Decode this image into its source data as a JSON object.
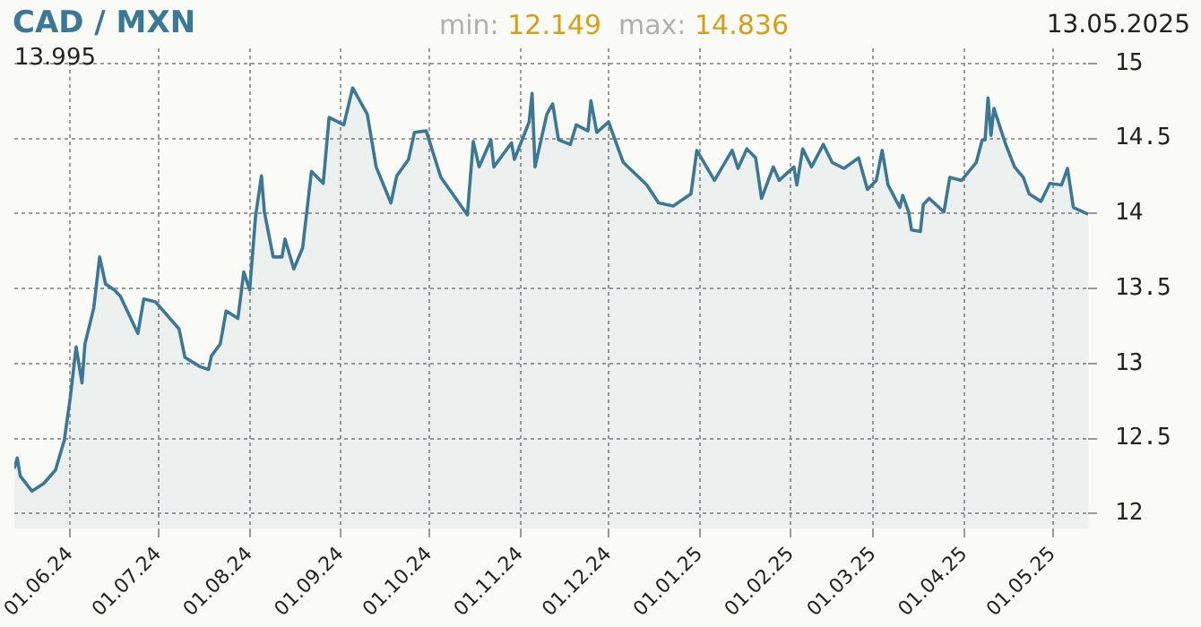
{
  "chart_data": {
    "type": "area",
    "title": "CAD / MXN",
    "annotations": [
      "13.995",
      "min: 12.149",
      "max: 14.836",
      "13.05.2025"
    ],
    "x": [
      "2024-05-13",
      "2024-05-14",
      "2024-05-15",
      "2024-05-19",
      "2024-05-23",
      "2024-05-27",
      "2024-05-30",
      "2024-06-01",
      "2024-06-03",
      "2024-06-05",
      "2024-06-06",
      "2024-06-09",
      "2024-06-11",
      "2024-06-13",
      "2024-06-16",
      "2024-06-18",
      "2024-06-24",
      "2024-06-26",
      "2024-06-30",
      "2024-07-08",
      "2024-07-10",
      "2024-07-15",
      "2024-07-18",
      "2024-07-19",
      "2024-07-22",
      "2024-07-24",
      "2024-07-28",
      "2024-07-30",
      "2024-08-01",
      "2024-08-03",
      "2024-08-05",
      "2024-08-06",
      "2024-08-09",
      "2024-08-12",
      "2024-08-13",
      "2024-08-16",
      "2024-08-19",
      "2024-08-22",
      "2024-08-26",
      "2024-08-28",
      "2024-09-02",
      "2024-09-05",
      "2024-09-10",
      "2024-09-13",
      "2024-09-18",
      "2024-09-20",
      "2024-09-24",
      "2024-09-26",
      "2024-09-30",
      "2024-10-05",
      "2024-10-09",
      "2024-10-14",
      "2024-10-16",
      "2024-10-18",
      "2024-10-22",
      "2024-10-23",
      "2024-10-29",
      "2024-10-30",
      "2024-11-04",
      "2024-11-05",
      "2024-11-06",
      "2024-11-10",
      "2024-11-12",
      "2024-11-14",
      "2024-11-18",
      "2024-11-20",
      "2024-11-24",
      "2024-11-25",
      "2024-11-27",
      "2024-12-01",
      "2024-12-06",
      "2024-12-14",
      "2024-12-18",
      "2024-12-23",
      "2024-12-29",
      "2024-12-31",
      "2025-01-06",
      "2025-01-12",
      "2025-01-14",
      "2025-01-17",
      "2025-01-20",
      "2025-01-22",
      "2025-01-26",
      "2025-01-28",
      "2025-02-02",
      "2025-02-03",
      "2025-02-05",
      "2025-02-08",
      "2025-02-12",
      "2025-02-15",
      "2025-02-19",
      "2025-02-24",
      "2025-02-27",
      "2025-03-02",
      "2025-03-04",
      "2025-03-06",
      "2025-03-10",
      "2025-03-11",
      "2025-03-13",
      "2025-03-14",
      "2025-03-17",
      "2025-03-18",
      "2025-03-20",
      "2025-03-25",
      "2025-03-27",
      "2025-03-31",
      "2025-04-05",
      "2025-04-07",
      "2025-04-08",
      "2025-04-09",
      "2025-04-10",
      "2025-04-11",
      "2025-04-15",
      "2025-04-18",
      "2025-04-21",
      "2025-04-23",
      "2025-04-27",
      "2025-04-30",
      "2025-05-04",
      "2025-05-06",
      "2025-05-08",
      "2025-05-13"
    ],
    "series": [
      {
        "color": "#3b7896",
        "values": [
          12.3,
          12.37,
          12.25,
          12.149,
          12.2,
          12.29,
          12.49,
          12.77,
          13.11,
          12.87,
          13.13,
          13.37,
          13.71,
          13.53,
          13.49,
          13.45,
          13.2,
          13.43,
          13.41,
          13.23,
          13.04,
          12.98,
          12.96,
          13.05,
          13.13,
          13.35,
          13.3,
          13.61,
          13.49,
          13.98,
          14.25,
          14.01,
          13.71,
          13.71,
          13.83,
          13.63,
          13.77,
          14.28,
          14.2,
          14.64,
          14.59,
          14.836,
          14.66,
          14.31,
          14.07,
          14.25,
          14.36,
          14.54,
          14.55,
          14.24,
          14.13,
          13.99,
          14.48,
          14.31,
          14.49,
          14.31,
          14.47,
          14.36,
          14.61,
          14.8,
          14.31,
          14.66,
          14.73,
          14.49,
          14.46,
          14.59,
          14.55,
          14.75,
          14.54,
          14.61,
          14.34,
          14.19,
          14.07,
          14.05,
          14.13,
          14.42,
          14.22,
          14.42,
          14.3,
          14.43,
          14.37,
          14.1,
          14.31,
          14.22,
          14.31,
          14.19,
          14.43,
          14.31,
          14.46,
          14.34,
          14.3,
          14.37,
          14.16,
          14.22,
          14.42,
          14.19,
          14.04,
          14.12,
          14.01,
          13.89,
          13.88,
          14.06,
          14.1,
          14.01,
          14.24,
          14.22,
          14.34,
          14.49,
          14.49,
          14.77,
          14.52,
          14.7,
          14.46,
          14.31,
          14.24,
          14.13,
          14.08,
          14.2,
          14.19,
          14.3,
          14.04,
          13.995
        ]
      }
    ],
    "xlim": [
      "2024-05-13",
      "2025-05-13"
    ],
    "xticks": [
      {
        "value": "2024-06-01",
        "label": "01.06.24"
      },
      {
        "value": "2024-07-01",
        "label": "01.07.24"
      },
      {
        "value": "2024-08-01",
        "label": "01.08.24"
      },
      {
        "value": "2024-09-01",
        "label": "01.09.24"
      },
      {
        "value": "2024-10-01",
        "label": "01.10.24"
      },
      {
        "value": "2024-11-01",
        "label": "01.11.24"
      },
      {
        "value": "2024-12-01",
        "label": "01.12.24"
      },
      {
        "value": "2025-01-01",
        "label": "01.01.25"
      },
      {
        "value": "2025-02-01",
        "label": "01.02.25"
      },
      {
        "value": "2025-03-01",
        "label": "01.03.25"
      },
      {
        "value": "2025-04-01",
        "label": "01.04.25"
      },
      {
        "value": "2025-05-01",
        "label": "01.05.25"
      }
    ],
    "ylim": [
      11.9,
      15.1
    ],
    "yticks": [
      12,
      12.5,
      13,
      13.5,
      14,
      14.5,
      15
    ],
    "grid": true
  }
}
